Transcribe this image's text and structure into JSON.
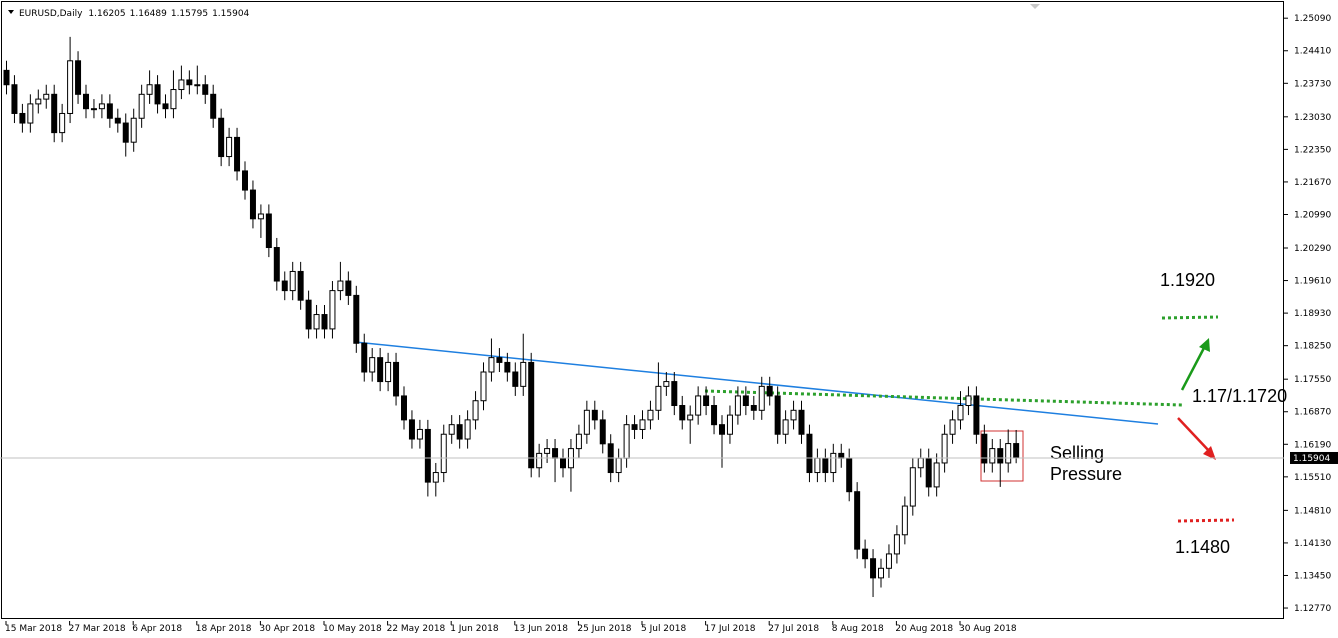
{
  "chart_data": {
    "type": "candlestick",
    "title": "EURUSD,Daily",
    "categories": [
      "15 Mar 2018",
      null,
      null,
      null,
      null,
      null,
      null,
      null,
      "27 Mar 2018",
      null,
      null,
      null,
      null,
      null,
      null,
      null,
      "6 Apr 2018",
      null,
      null,
      null,
      null,
      null,
      null,
      null,
      "18 Apr 2018",
      null,
      null,
      null,
      null,
      null,
      null,
      null,
      "30 Apr 2018",
      null,
      null,
      null,
      null,
      null,
      null,
      null,
      "10 May 2018",
      null,
      null,
      null,
      null,
      null,
      null,
      null,
      "22 May 2018",
      null,
      null,
      null,
      null,
      null,
      null,
      null,
      "1 Jun 2018",
      null,
      null,
      null,
      null,
      null,
      null,
      null,
      "13 Jun 2018",
      null,
      null,
      null,
      null,
      null,
      null,
      null,
      "25 Jun 2018",
      null,
      null,
      null,
      null,
      null,
      null,
      null,
      "5 Jul 2018",
      null,
      null,
      null,
      null,
      null,
      null,
      null,
      "17 Jul 2018",
      null,
      null,
      null,
      null,
      null,
      null,
      null,
      "27 Jul 2018",
      null,
      null,
      null,
      null,
      null,
      null,
      null,
      "8 Aug 2018",
      null,
      null,
      null,
      null,
      null,
      null,
      null,
      "20 Aug 2018",
      null,
      null,
      null,
      null,
      null,
      null,
      null,
      "30 Aug 2018",
      null,
      null,
      null,
      null,
      null,
      null,
      null
    ],
    "open": [
      1.24,
      1.237,
      1.231,
      1.229,
      1.233,
      1.234,
      1.235,
      1.227,
      1.231,
      1.242,
      1.235,
      1.232,
      1.232,
      1.233,
      1.23,
      1.229,
      1.225,
      1.23,
      1.235,
      1.237,
      1.233,
      1.232,
      1.236,
      1.238,
      1.237,
      1.237,
      1.235,
      1.23,
      1.222,
      1.226,
      1.219,
      1.215,
      1.209,
      1.21,
      1.203,
      1.196,
      1.194,
      1.198,
      1.192,
      1.186,
      1.189,
      1.186,
      1.194,
      1.196,
      1.193,
      1.183,
      1.177,
      1.18,
      1.175,
      1.179,
      1.172,
      1.167,
      1.163,
      1.165,
      1.154,
      1.156,
      1.164,
      1.166,
      1.163,
      1.167,
      1.171,
      1.177,
      1.18,
      1.179,
      1.177,
      1.174,
      1.179,
      1.157,
      1.16,
      1.161,
      1.159,
      1.157,
      1.161,
      1.164,
      1.169,
      1.167,
      1.162,
      1.156,
      1.159,
      1.166,
      1.165,
      1.167,
      1.169,
      1.174,
      1.175,
      1.17,
      1.167,
      1.168,
      1.172,
      1.17,
      1.166,
      1.164,
      1.168,
      1.172,
      1.17,
      1.169,
      1.174,
      1.172,
      1.164,
      1.167,
      1.169,
      1.164,
      1.156,
      1.159,
      1.156,
      1.16,
      1.159,
      1.152,
      1.14,
      1.138,
      1.134,
      1.136,
      1.139,
      1.143,
      1.149,
      1.157,
      1.159,
      1.153,
      1.158,
      1.164,
      1.167,
      1.17,
      1.172,
      1.164,
      1.158,
      1.161,
      1.158,
      1.16205
    ],
    "high": [
      1.242,
      1.239,
      1.233,
      1.235,
      1.236,
      1.237,
      1.237,
      1.233,
      1.247,
      1.244,
      1.237,
      1.234,
      1.235,
      1.235,
      1.232,
      1.231,
      1.232,
      1.237,
      1.24,
      1.239,
      1.235,
      1.24,
      1.241,
      1.24,
      1.241,
      1.239,
      1.237,
      1.232,
      1.228,
      1.228,
      1.221,
      1.217,
      1.212,
      1.212,
      1.205,
      1.198,
      1.2,
      1.2,
      1.194,
      1.191,
      1.191,
      1.196,
      1.2,
      1.198,
      1.195,
      1.185,
      1.182,
      1.182,
      1.181,
      1.181,
      1.174,
      1.169,
      1.167,
      1.167,
      1.158,
      1.166,
      1.168,
      1.168,
      1.169,
      1.173,
      1.179,
      1.184,
      1.182,
      1.181,
      1.179,
      1.185,
      1.181,
      1.162,
      1.163,
      1.163,
      1.161,
      1.163,
      1.166,
      1.171,
      1.171,
      1.169,
      1.164,
      1.161,
      1.168,
      1.168,
      1.169,
      1.171,
      1.179,
      1.177,
      1.177,
      1.172,
      1.17,
      1.174,
      1.174,
      1.172,
      1.168,
      1.17,
      1.174,
      1.174,
      1.172,
      1.176,
      1.176,
      1.174,
      1.169,
      1.171,
      1.171,
      1.166,
      1.161,
      1.161,
      1.162,
      1.162,
      1.161,
      1.154,
      1.142,
      1.14,
      1.138,
      1.141,
      1.145,
      1.151,
      1.159,
      1.161,
      1.161,
      1.16,
      1.166,
      1.169,
      1.173,
      1.174,
      1.174,
      1.166,
      1.163,
      1.163,
      1.165,
      1.16489
    ],
    "low": [
      1.235,
      1.229,
      1.227,
      1.227,
      1.231,
      1.232,
      1.225,
      1.225,
      1.229,
      1.233,
      1.23,
      1.23,
      1.23,
      1.228,
      1.227,
      1.222,
      1.223,
      1.228,
      1.233,
      1.231,
      1.23,
      1.23,
      1.234,
      1.235,
      1.235,
      1.233,
      1.228,
      1.22,
      1.22,
      1.217,
      1.213,
      1.207,
      1.205,
      1.201,
      1.194,
      1.192,
      1.192,
      1.19,
      1.184,
      1.184,
      1.184,
      1.184,
      1.192,
      1.191,
      1.181,
      1.175,
      1.175,
      1.173,
      1.173,
      1.17,
      1.165,
      1.161,
      1.161,
      1.151,
      1.151,
      1.154,
      1.162,
      1.161,
      1.161,
      1.165,
      1.169,
      1.175,
      1.177,
      1.175,
      1.172,
      1.172,
      1.155,
      1.155,
      1.158,
      1.154,
      1.155,
      1.152,
      1.159,
      1.162,
      1.165,
      1.16,
      1.154,
      1.154,
      1.157,
      1.163,
      1.163,
      1.165,
      1.167,
      1.172,
      1.168,
      1.165,
      1.162,
      1.166,
      1.168,
      1.164,
      1.157,
      1.162,
      1.166,
      1.168,
      1.167,
      1.167,
      1.17,
      1.162,
      1.162,
      1.165,
      1.162,
      1.154,
      1.154,
      1.154,
      1.154,
      1.157,
      1.15,
      1.138,
      1.136,
      1.13,
      1.132,
      1.134,
      1.137,
      1.141,
      1.147,
      1.155,
      1.151,
      1.151,
      1.156,
      1.162,
      1.165,
      1.168,
      1.162,
      1.156,
      1.156,
      1.153,
      1.156,
      1.15795
    ],
    "close": [
      1.237,
      1.231,
      1.229,
      1.233,
      1.234,
      1.235,
      1.227,
      1.231,
      1.242,
      1.235,
      1.232,
      1.232,
      1.233,
      1.23,
      1.229,
      1.225,
      1.23,
      1.235,
      1.237,
      1.233,
      1.232,
      1.236,
      1.238,
      1.237,
      1.237,
      1.235,
      1.23,
      1.222,
      1.226,
      1.219,
      1.215,
      1.209,
      1.21,
      1.203,
      1.196,
      1.194,
      1.198,
      1.192,
      1.186,
      1.189,
      1.186,
      1.194,
      1.196,
      1.193,
      1.183,
      1.177,
      1.18,
      1.175,
      1.179,
      1.172,
      1.167,
      1.163,
      1.165,
      1.154,
      1.156,
      1.164,
      1.166,
      1.163,
      1.167,
      1.171,
      1.177,
      1.18,
      1.179,
      1.177,
      1.174,
      1.179,
      1.157,
      1.16,
      1.161,
      1.159,
      1.157,
      1.161,
      1.164,
      1.169,
      1.167,
      1.162,
      1.156,
      1.159,
      1.166,
      1.165,
      1.167,
      1.169,
      1.174,
      1.175,
      1.17,
      1.167,
      1.168,
      1.172,
      1.17,
      1.166,
      1.164,
      1.168,
      1.172,
      1.17,
      1.169,
      1.174,
      1.172,
      1.164,
      1.167,
      1.169,
      1.164,
      1.156,
      1.159,
      1.156,
      1.16,
      1.159,
      1.152,
      1.14,
      1.138,
      1.134,
      1.136,
      1.139,
      1.143,
      1.149,
      1.157,
      1.159,
      1.153,
      1.158,
      1.164,
      1.167,
      1.17,
      1.172,
      1.164,
      1.158,
      1.161,
      1.158,
      1.16205,
      1.15904
    ],
    "ylim": [
      1.1252,
      1.2547
    ],
    "yticks": [
      {
        "value": 1.2509,
        "label": "1.25090"
      },
      {
        "value": 1.2441,
        "label": "1.24410"
      },
      {
        "value": 1.2373,
        "label": "1.23730"
      },
      {
        "value": 1.2303,
        "label": "1.23030"
      },
      {
        "value": 1.2235,
        "label": "1.22350"
      },
      {
        "value": 1.2167,
        "label": "1.21670"
      },
      {
        "value": 1.2099,
        "label": "1.20990"
      },
      {
        "value": 1.2029,
        "label": "1.20290"
      },
      {
        "value": 1.1961,
        "label": "1.19610"
      },
      {
        "value": 1.1893,
        "label": "1.18930"
      },
      {
        "value": 1.1825,
        "label": "1.18250"
      },
      {
        "value": 1.1755,
        "label": "1.17550"
      },
      {
        "value": 1.1687,
        "label": "1.16870"
      },
      {
        "value": 1.1619,
        "label": "1.16190"
      },
      {
        "value": 1.1551,
        "label": "1.15510"
      },
      {
        "value": 1.1481,
        "label": "1.14810"
      },
      {
        "value": 1.1413,
        "label": "1.14130"
      },
      {
        "value": 1.1345,
        "label": "1.13450"
      },
      {
        "value": 1.1277,
        "label": "1.12770"
      }
    ],
    "annotations": {
      "target_up": "1.1920",
      "pivot": "1.17/1.1720",
      "target_down": "1.1480",
      "note": [
        "Selling",
        "Pressure"
      ]
    }
  }
}
